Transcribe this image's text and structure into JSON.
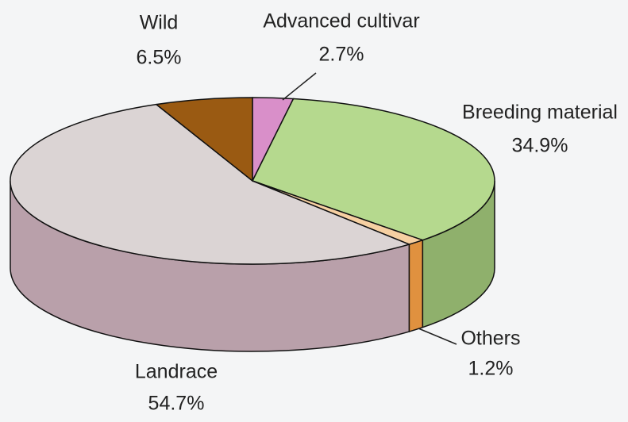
{
  "chart_data": {
    "type": "pie3d",
    "categories": [
      "Advanced cultivar",
      "Breeding material",
      "Others",
      "Landrace",
      "Wild"
    ],
    "values": [
      2.7,
      34.9,
      1.2,
      54.7,
      6.5
    ],
    "value_labels": [
      "2.7%",
      "34.9%",
      "1.2%",
      "54.7%",
      "6.5%"
    ],
    "colors": [
      "#d98fc9",
      "#b5d98e",
      "#f6d0a2",
      "#dbd4d4",
      "#9a5a12"
    ],
    "side_colors": [
      "#b872a8",
      "#8fb06c",
      "#e0913f",
      "#b9a0aa",
      "#7a440a"
    ]
  }
}
